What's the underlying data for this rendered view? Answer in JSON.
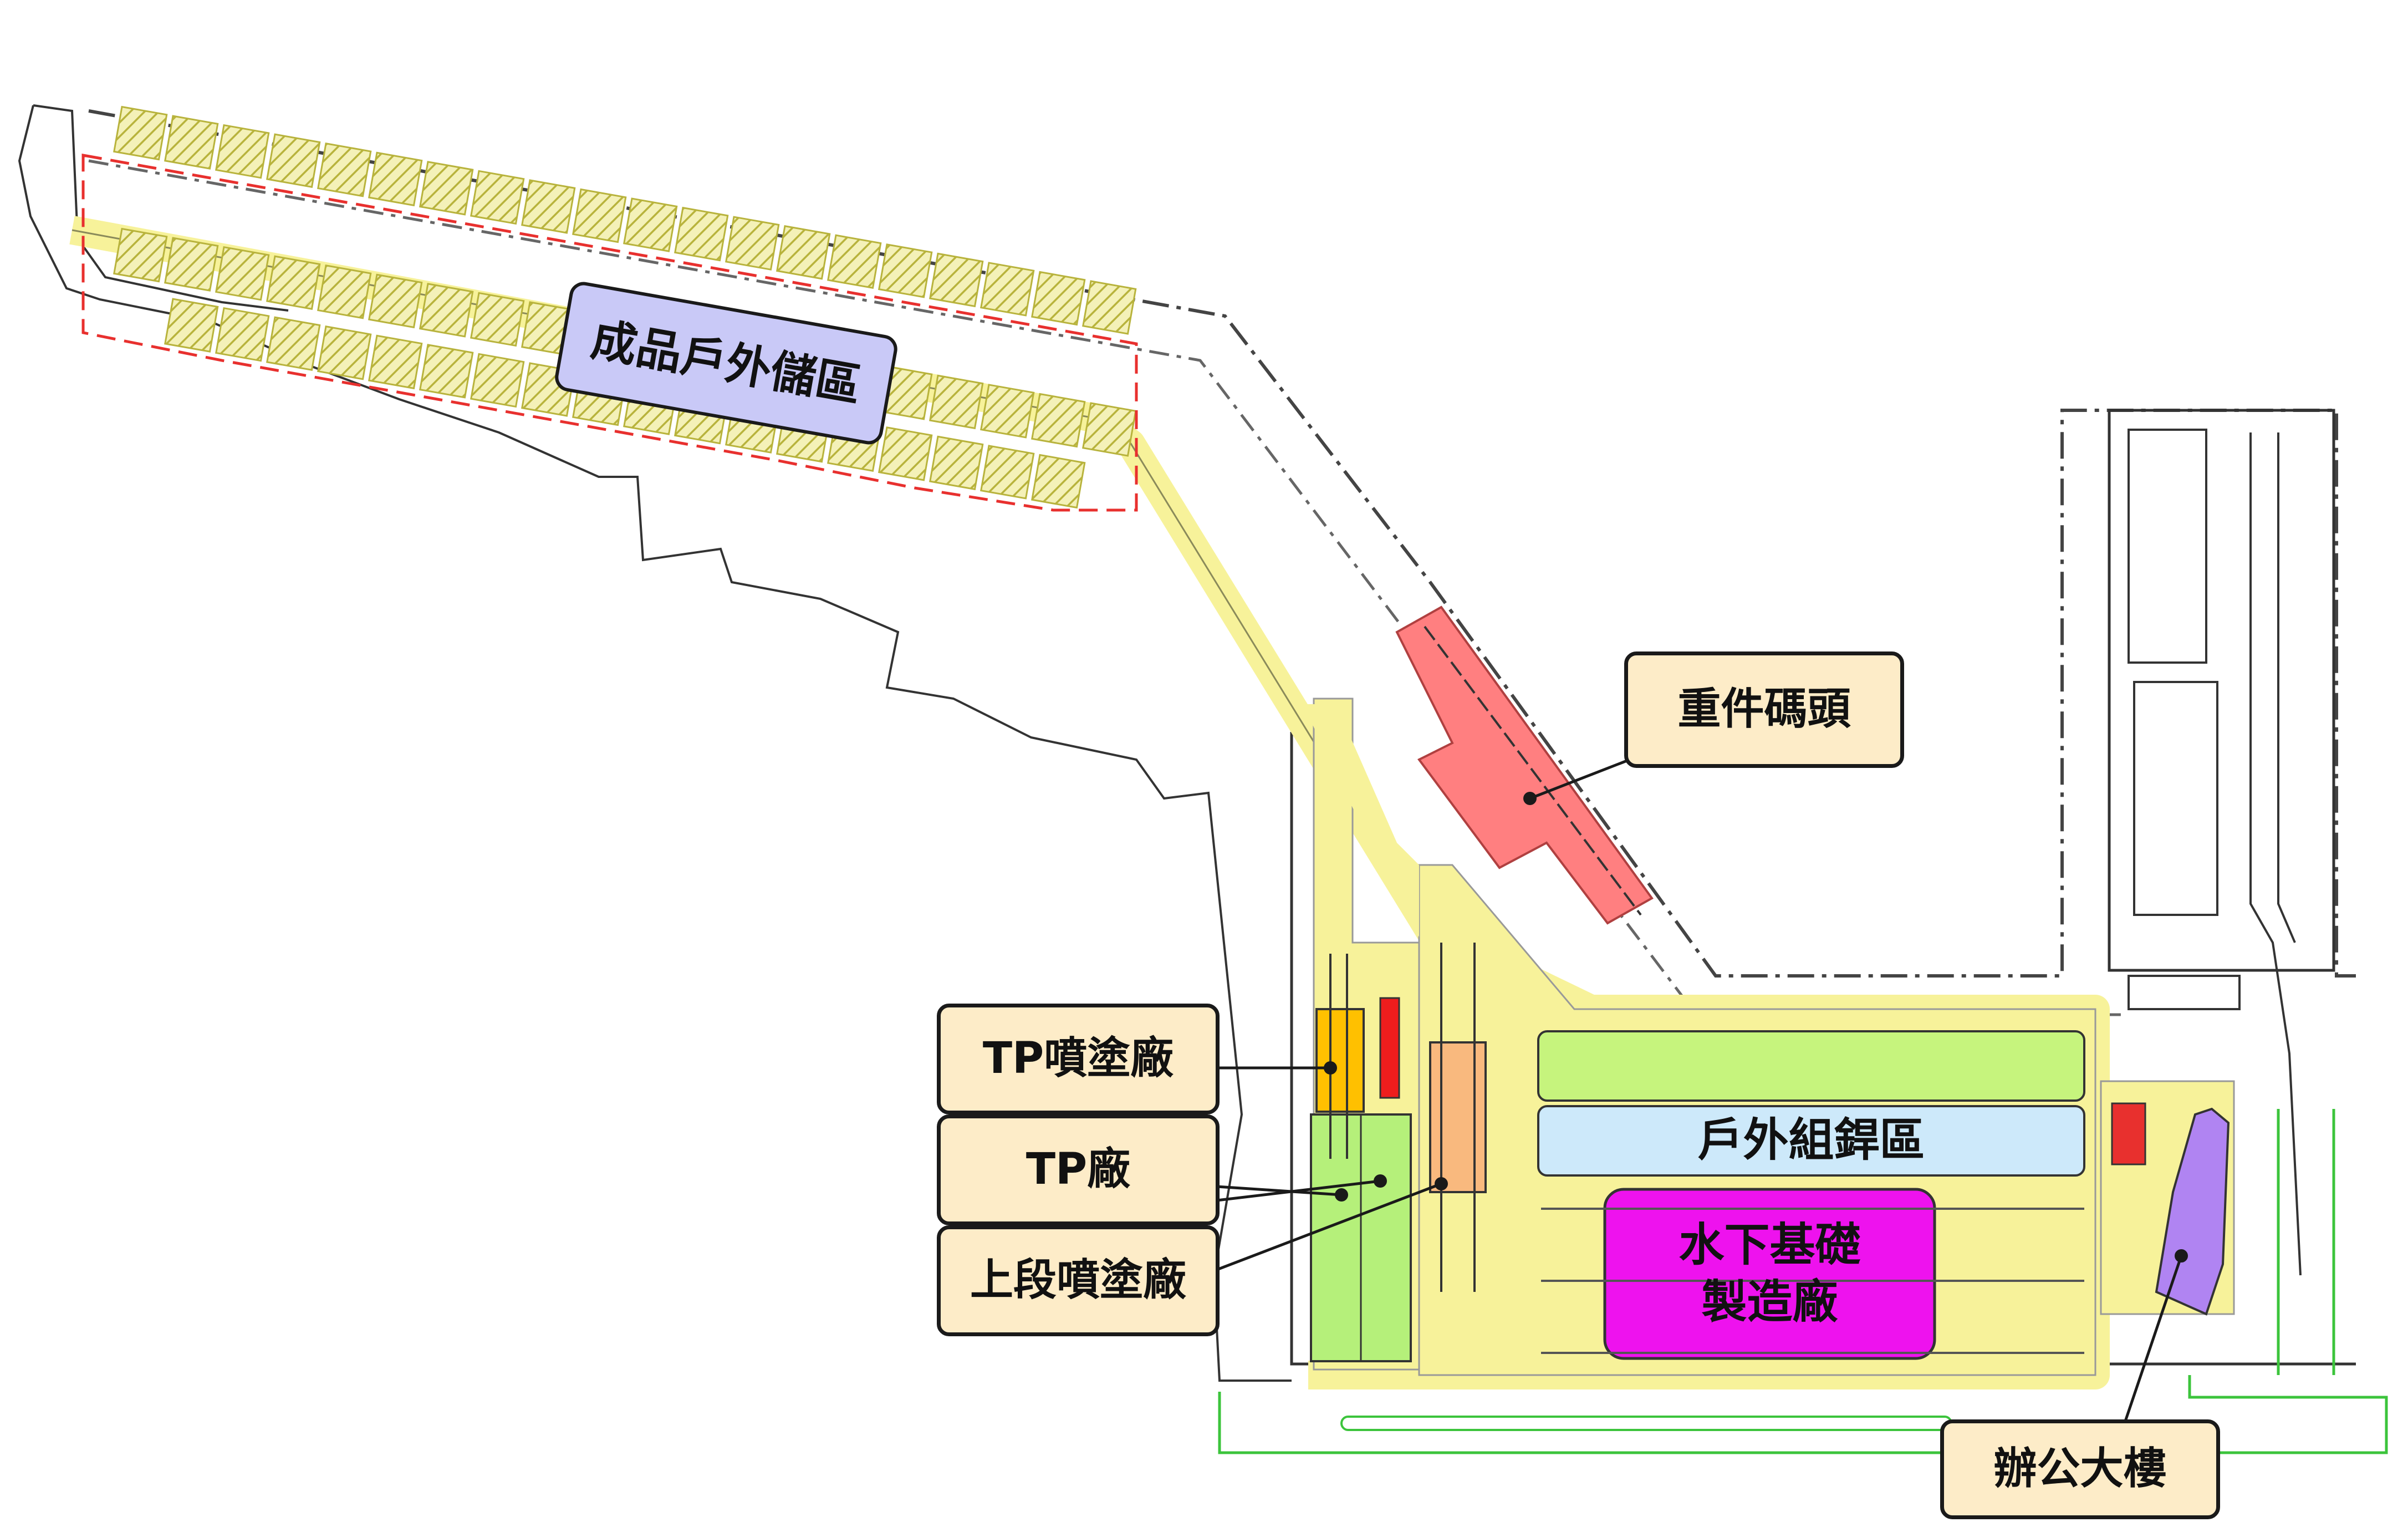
{
  "labels": {
    "outdoor_storage": "成品戶外儲區",
    "heavy_wharf": "重件碼頭",
    "tp_paint": "TP噴塗廠",
    "tp_plant": "TP廠",
    "upper_paint": "上段噴塗廠",
    "outdoor_assembly": "戶外組銲區",
    "foundation_line1": "水下基礎",
    "foundation_line2": "製造廠",
    "office": "辦公大樓"
  },
  "colors": {
    "road": "#f7f29a",
    "outdoor_storage": "#c9c9f7",
    "heavy_wharf": "#ff7f80",
    "tp_paint": "#ffc000",
    "tp_plant": "#b5f07a",
    "upper_paint": "#f9b97e",
    "green_band": "#c6f47d",
    "outdoor_assembly": "#cde9fa",
    "foundation": "#ee12ee",
    "office": "#b084f2",
    "callout_fill": "#fdecc8",
    "storage_hatch": "#b8b33c",
    "dashed_red": "#e8302e"
  }
}
